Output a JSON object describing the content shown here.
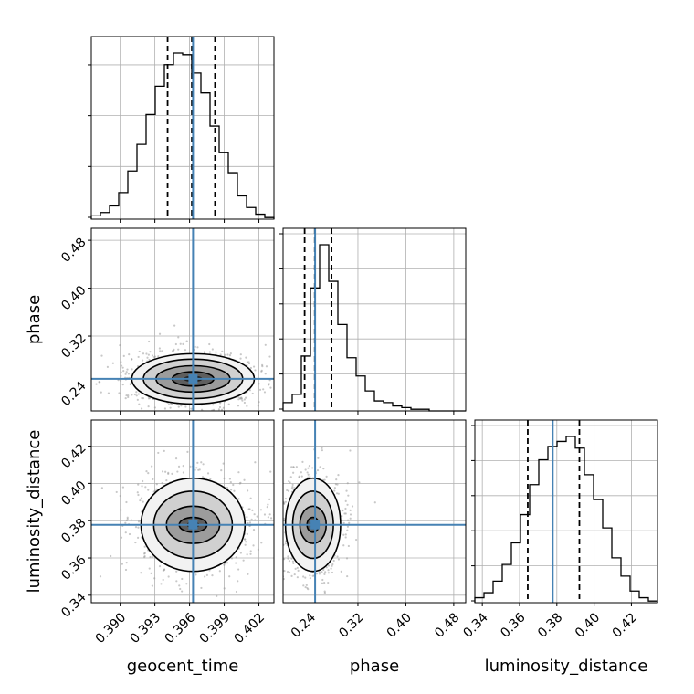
{
  "chart_data": {
    "type": "corner",
    "parameters": [
      "geocent_time",
      "phase",
      "luminosity_distance"
    ],
    "truths": {
      "geocent_time": 0.3963,
      "phase": 0.2485,
      "luminosity_distance": 0.3778
    },
    "grid": true,
    "colors": {
      "truth": "#4682b4",
      "hist": "#000000",
      "points": "#9a9a9a",
      "frame": "#000000",
      "grid": "#b0b0b0"
    },
    "histograms": [
      {
        "param": "geocent_time",
        "range": [
          0.3875,
          0.4033
        ],
        "bins": 20,
        "heights": [
          0.02,
          0.04,
          0.08,
          0.16,
          0.29,
          0.45,
          0.63,
          0.8,
          0.93,
          1.0,
          0.99,
          0.88,
          0.76,
          0.56,
          0.4,
          0.28,
          0.14,
          0.07,
          0.03,
          0.01
        ],
        "quantiles": [
          0.3941,
          0.3962,
          0.3982
        ],
        "yticks": [
          0.0,
          0.29,
          0.58,
          0.87
        ]
      },
      {
        "param": "phase",
        "range": [
          0.195,
          0.5
        ],
        "bins": 20,
        "heights": [
          0.05,
          0.1,
          0.33,
          0.74,
          1.0,
          0.78,
          0.52,
          0.32,
          0.21,
          0.12,
          0.06,
          0.05,
          0.03,
          0.02,
          0.01,
          0.01,
          0.0,
          0.0,
          0.0,
          0.0
        ],
        "quantiles": [
          0.231,
          0.248,
          0.276
        ],
        "yticks": [
          0.0,
          0.2,
          0.4,
          0.6,
          0.8,
          1.0
        ]
      },
      {
        "param": "luminosity_distance",
        "range": [
          0.336,
          0.434
        ],
        "bins": 20,
        "heights": [
          0.03,
          0.06,
          0.13,
          0.23,
          0.36,
          0.53,
          0.71,
          0.86,
          0.94,
          0.97,
          1.0,
          0.93,
          0.77,
          0.62,
          0.45,
          0.27,
          0.16,
          0.07,
          0.03,
          0.01
        ],
        "quantiles": [
          0.3644,
          0.3776,
          0.3921
        ],
        "yticks": [
          0.0,
          0.2,
          0.4,
          0.6,
          0.8,
          1.0
        ]
      }
    ],
    "pairs": [
      {
        "x": "geocent_time",
        "y": "phase",
        "xrange": [
          0.3875,
          0.4033
        ],
        "yrange": [
          0.195,
          0.5
        ],
        "center": [
          0.3963,
          0.2485
        ],
        "contours": [
          {
            "rx": 0.0018,
            "ry": 0.012
          },
          {
            "rx": 0.0032,
            "ry": 0.022
          },
          {
            "rx": 0.0043,
            "ry": 0.033
          },
          {
            "rx": 0.0053,
            "ry": 0.042
          }
        ]
      },
      {
        "x": "geocent_time",
        "y": "luminosity_distance",
        "xrange": [
          0.3875,
          0.4033
        ],
        "yrange": [
          0.336,
          0.434
        ],
        "center": [
          0.3963,
          0.3778
        ],
        "contours": [
          {
            "rx": 0.0012,
            "ry": 0.004
          },
          {
            "rx": 0.0023,
            "ry": 0.01
          },
          {
            "rx": 0.0034,
            "ry": 0.018
          },
          {
            "rx": 0.0045,
            "ry": 0.025
          }
        ]
      },
      {
        "x": "phase",
        "y": "luminosity_distance",
        "xrange": [
          0.195,
          0.5
        ],
        "yrange": [
          0.336,
          0.434
        ],
        "center": [
          0.245,
          0.3778
        ],
        "contours": [
          {
            "rx": 0.01,
            "ry": 0.004
          },
          {
            "rx": 0.022,
            "ry": 0.01
          },
          {
            "rx": 0.034,
            "ry": 0.018
          },
          {
            "rx": 0.046,
            "ry": 0.025
          }
        ]
      }
    ],
    "ticks": {
      "geocent_time": {
        "values": [
          0.39,
          0.393,
          0.396,
          0.399,
          0.402
        ],
        "labels": [
          "0.390",
          "0.393",
          "0.396",
          "0.399",
          "0.402"
        ]
      },
      "phase": {
        "values": [
          0.24,
          0.32,
          0.4,
          0.48
        ],
        "labels": [
          "0.24",
          "0.32",
          "0.40",
          "0.48"
        ]
      },
      "luminosity_distance": {
        "values": [
          0.34,
          0.36,
          0.38,
          0.4,
          0.42
        ],
        "labels": [
          "0.34",
          "0.36",
          "0.38",
          "0.40",
          "0.42"
        ]
      }
    },
    "axis_labels": {
      "geocent_time": "geocent_time",
      "phase": "phase",
      "luminosity_distance": "luminosity_distance"
    }
  }
}
